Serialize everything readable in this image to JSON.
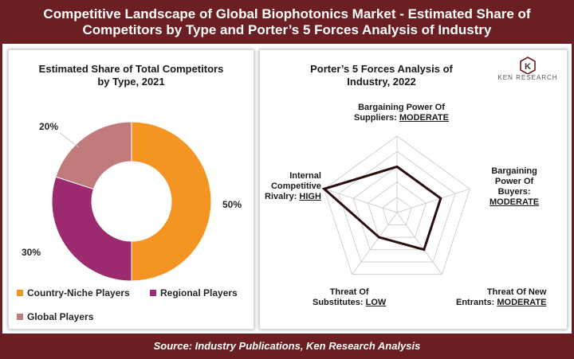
{
  "header": {
    "line1": "Competitive Landscape of Global Biophotonics Market - Estimated Share of",
    "line2": "Competitors by Type and Porter’s 5 Forces Analysis of Industry"
  },
  "footer": {
    "source": "Source: Industry Publications, Ken Research Analysis"
  },
  "logo": {
    "text": "KEN RESEARCH",
    "mark": "K"
  },
  "colors": {
    "brand": "#6b1f23",
    "country_niche": "#f39423",
    "regional": "#9b2a6f",
    "global": "#c27b7d",
    "radar_line": "#2b0e0e",
    "grid": "#d0d0d0"
  },
  "chart_data": [
    {
      "type": "pie",
      "donut": true,
      "title_line1": "Estimated Share of Total Competitors",
      "title_line2": "by Type, 2021",
      "categories": [
        "Country-Niche Players",
        "Regional Players",
        "Global Players"
      ],
      "values": [
        50,
        30,
        20
      ],
      "labels": [
        "50%",
        "30%",
        "20%"
      ],
      "legend_placement": "bottom"
    },
    {
      "type": "radar",
      "title_line1": "Porter’s 5 Forces Analysis of",
      "title_line2": "Industry, 2022",
      "axes": [
        {
          "label_lines": [
            "Bargaining Power Of",
            "Suppliers: "
          ],
          "level": "MODERATE",
          "value": 3
        },
        {
          "label_lines": [
            "Bargaining",
            "Power Of",
            "Buyers:"
          ],
          "level": "MODERATE",
          "value": 3
        },
        {
          "label_lines": [
            "Threat Of New",
            "Entrants: "
          ],
          "level": "MODERATE",
          "value": 3
        },
        {
          "label_lines": [
            "Threat Of",
            "Substitutes: "
          ],
          "level": "LOW",
          "value": 2
        },
        {
          "label_lines": [
            "Internal",
            "Competitive",
            "Rivalry: "
          ],
          "level": "HIGH",
          "value": 5
        }
      ],
      "scale_max": 5,
      "grid_levels": 5
    }
  ]
}
